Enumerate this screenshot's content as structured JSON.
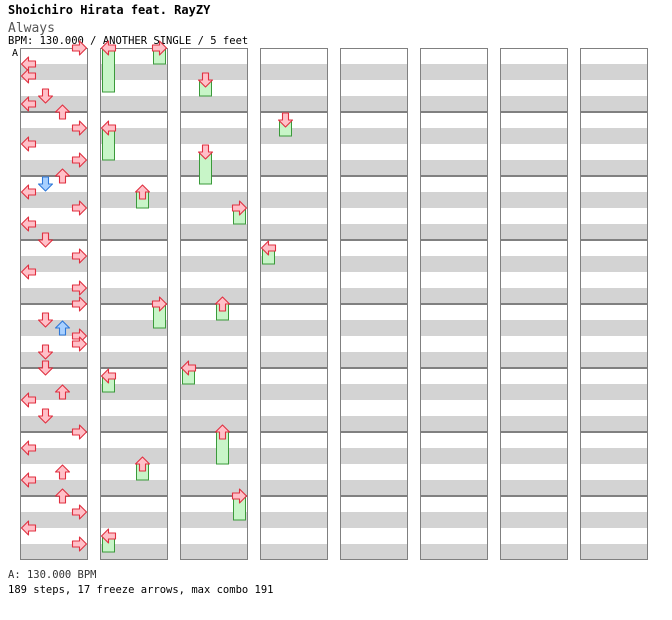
{
  "header": {
    "artist": "Shoichiro Hirata feat. RayZY",
    "title": "Always",
    "info": "BPM: 130.000 / ANOTHER SINGLE / 5 feet",
    "segment_marker": "A"
  },
  "footer": {
    "bpm_line": "A: 130.000 BPM",
    "stats_line": "189 steps, 17 freeze arrows, max combo 191"
  },
  "colors": {
    "grid_gray": "#d3d3d3",
    "grid_border": "#808080",
    "arrow_red_fill": "#ffc0c8",
    "arrow_red_stroke": "#e03040",
    "arrow_blue_fill": "#a8d0ff",
    "arrow_blue_stroke": "#2e78d8",
    "freeze_fill": "#c8f5c8",
    "freeze_stroke": "#3a9a3a"
  },
  "chart_notes": {
    "lane_order": [
      "left",
      "down",
      "up",
      "right"
    ],
    "beat_unit": "quarter-note, 4 beats per measure, 8 measures per column",
    "notes": [
      {
        "b": 0.0,
        "d": "right",
        "c": "red"
      },
      {
        "b": 1.0,
        "d": "left",
        "c": "red"
      },
      {
        "b": 1.75,
        "d": "left",
        "c": "red"
      },
      {
        "b": 3.0,
        "d": "down",
        "c": "red"
      },
      {
        "b": 3.5,
        "d": "left",
        "c": "red"
      },
      {
        "b": 4.0,
        "d": "up",
        "c": "red"
      },
      {
        "b": 5.0,
        "d": "right",
        "c": "red"
      },
      {
        "b": 6.0,
        "d": "left",
        "c": "red"
      },
      {
        "b": 7.0,
        "d": "right",
        "c": "red"
      },
      {
        "b": 8.0,
        "d": "up",
        "c": "red"
      },
      {
        "b": 8.5,
        "d": "down",
        "c": "blue"
      },
      {
        "b": 9.0,
        "d": "left",
        "c": "red"
      },
      {
        "b": 10.0,
        "d": "right",
        "c": "red"
      },
      {
        "b": 11.0,
        "d": "left",
        "c": "red"
      },
      {
        "b": 12.0,
        "d": "down",
        "c": "red"
      },
      {
        "b": 13.0,
        "d": "right",
        "c": "red"
      },
      {
        "b": 14.0,
        "d": "left",
        "c": "red"
      },
      {
        "b": 15.0,
        "d": "right",
        "c": "red"
      },
      {
        "b": 16.0,
        "d": "right",
        "c": "red"
      },
      {
        "b": 17.0,
        "d": "down",
        "c": "red"
      },
      {
        "b": 17.5,
        "d": "up",
        "c": "blue"
      },
      {
        "b": 18.0,
        "d": "right",
        "c": "red"
      },
      {
        "b": 18.5,
        "d": "right",
        "c": "red"
      },
      {
        "b": 19.0,
        "d": "down",
        "c": "red"
      },
      {
        "b": 20.0,
        "d": "down",
        "c": "red"
      },
      {
        "b": 21.5,
        "d": "up",
        "c": "red"
      },
      {
        "b": 22.0,
        "d": "left",
        "c": "red"
      },
      {
        "b": 23.0,
        "d": "down",
        "c": "red"
      },
      {
        "b": 24.0,
        "d": "right",
        "c": "red"
      },
      {
        "b": 25.0,
        "d": "left",
        "c": "red"
      },
      {
        "b": 26.5,
        "d": "up",
        "c": "red"
      },
      {
        "b": 27.0,
        "d": "left",
        "c": "red"
      },
      {
        "b": 28.0,
        "d": "up",
        "c": "red"
      },
      {
        "b": 29.0,
        "d": "right",
        "c": "red"
      },
      {
        "b": 30.0,
        "d": "left",
        "c": "red"
      },
      {
        "b": 31.0,
        "d": "right",
        "c": "red"
      }
    ],
    "freezes": [
      {
        "b": 32.0,
        "len": 2.75,
        "lane": "left"
      },
      {
        "b": 32.0,
        "len": 1.0,
        "lane": "right"
      },
      {
        "b": 37.0,
        "len": 2.0,
        "lane": "left"
      },
      {
        "b": 41.0,
        "len": 1.0,
        "lane": "up"
      },
      {
        "b": 48.0,
        "len": 1.5,
        "lane": "right"
      },
      {
        "b": 52.5,
        "len": 1.0,
        "lane": "left"
      },
      {
        "b": 58.0,
        "len": 1.0,
        "lane": "up"
      },
      {
        "b": 62.5,
        "len": 1.0,
        "lane": "left"
      },
      {
        "b": 66.0,
        "len": 1.0,
        "lane": "down"
      },
      {
        "b": 70.5,
        "len": 2.0,
        "lane": "down"
      },
      {
        "b": 74.0,
        "len": 1.0,
        "lane": "right"
      },
      {
        "b": 80.0,
        "len": 1.0,
        "lane": "up"
      },
      {
        "b": 84.0,
        "len": 1.0,
        "lane": "left"
      },
      {
        "b": 88.0,
        "len": 2.0,
        "lane": "up"
      },
      {
        "b": 92.0,
        "len": 1.5,
        "lane": "right"
      },
      {
        "b": 100.5,
        "len": 1.0,
        "lane": "down"
      },
      {
        "b": 108.5,
        "len": 1.0,
        "lane": "left"
      }
    ]
  }
}
